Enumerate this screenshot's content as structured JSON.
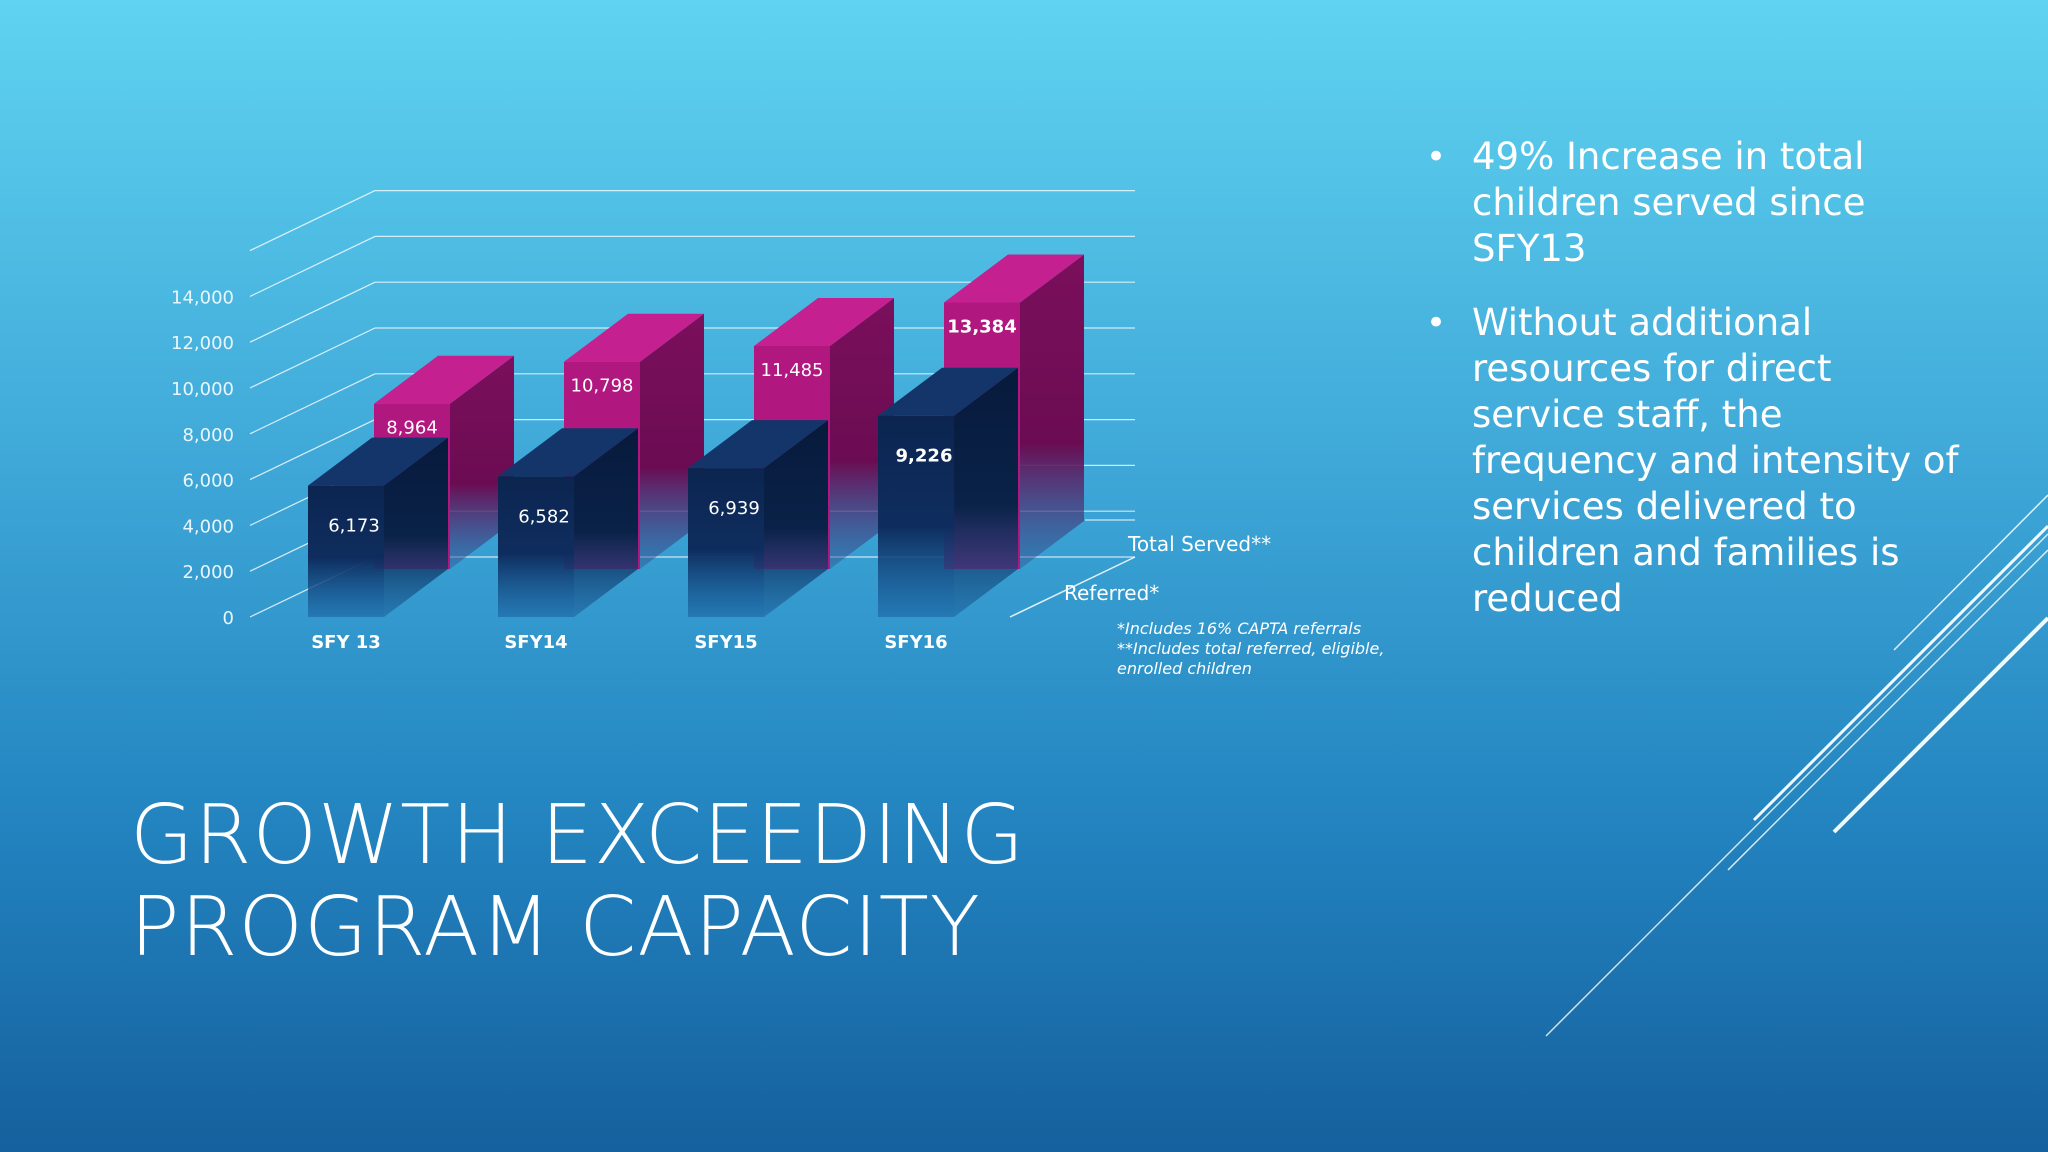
{
  "slide": {
    "title": "GROWTH EXCEEDING PROGRAM CAPACITY",
    "bullets": [
      "49% Increase in total children served since SFY13",
      "Without additional resources for direct service staff, the frequency and intensity of services delivered to children and families is reduced"
    ],
    "bullet_glyph": "•"
  },
  "chart_data": {
    "type": "bar",
    "style": "3d-clustered",
    "categories": [
      "SFY 13",
      "SFY14",
      "SFY15",
      "SFY16"
    ],
    "series": [
      {
        "name": "Referred*",
        "values": [
          6173,
          6582,
          6939,
          9226
        ],
        "labels": [
          "6,173",
          "6,582",
          "6,939",
          "9,226"
        ],
        "color": "#0d2a5a"
      },
      {
        "name": "Total Served**",
        "values": [
          8964,
          10798,
          11485,
          13384
        ],
        "labels": [
          "8,964",
          "10,798",
          "11,485",
          "13,384"
        ],
        "color": "#b0177f"
      }
    ],
    "yticks": [
      "0",
      "2,000",
      "4,000",
      "6,000",
      "8,000",
      "10,000",
      "12,000",
      "14,000"
    ],
    "ylim": [
      0,
      16000
    ],
    "grid": true,
    "footnotes": [
      "*Includes 16% CAPTA referrals",
      "**Includes total referred, eligible,",
      "enrolled children"
    ]
  }
}
